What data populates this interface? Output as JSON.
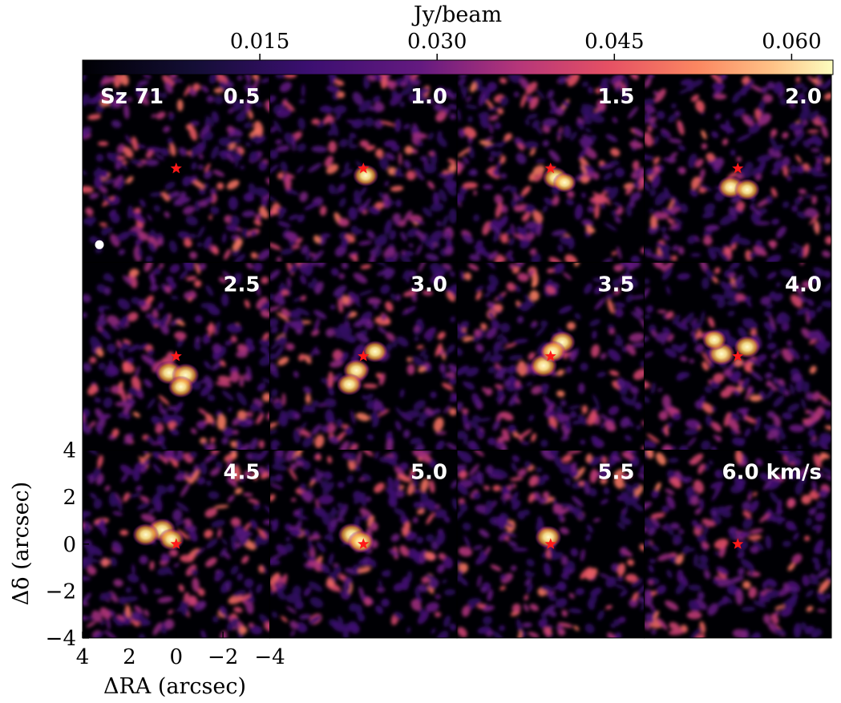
{
  "chart_data": {
    "type": "heatmap",
    "title": "",
    "source_label": "Sz 71",
    "velocity_unit": "km/s",
    "panels": [
      {
        "label": "0.5",
        "emission": []
      },
      {
        "label": "1.0",
        "emission": [
          {
            "dx": -0.1,
            "dy": -0.3,
            "peak": 0.05
          }
        ]
      },
      {
        "label": "1.5",
        "emission": [
          {
            "dx": -0.2,
            "dy": -0.4,
            "peak": 0.05
          },
          {
            "dx": -0.6,
            "dy": -0.6,
            "peak": 0.04
          }
        ]
      },
      {
        "label": "2.0",
        "emission": [
          {
            "dx": 0.3,
            "dy": -0.8,
            "peak": 0.055
          },
          {
            "dx": -0.4,
            "dy": -0.9,
            "peak": 0.05
          }
        ]
      },
      {
        "label": "2.5",
        "emission": [
          {
            "dx": 0.3,
            "dy": -0.7,
            "peak": 0.06
          },
          {
            "dx": -0.4,
            "dy": -0.8,
            "peak": 0.06
          },
          {
            "dx": -0.2,
            "dy": -1.3,
            "peak": 0.05
          }
        ]
      },
      {
        "label": "3.0",
        "emission": [
          {
            "dx": 0.3,
            "dy": -0.6,
            "peak": 0.055
          },
          {
            "dx": -0.5,
            "dy": 0.2,
            "peak": 0.05
          },
          {
            "dx": 0.6,
            "dy": -1.2,
            "peak": 0.05
          }
        ]
      },
      {
        "label": "3.5",
        "emission": [
          {
            "dx": 0.3,
            "dy": -0.4,
            "peak": 0.06
          },
          {
            "dx": -0.5,
            "dy": 0.6,
            "peak": 0.055
          },
          {
            "dx": -0.1,
            "dy": 0.2,
            "peak": 0.05
          }
        ]
      },
      {
        "label": "4.0",
        "emission": [
          {
            "dx": 0.7,
            "dy": 0.1,
            "peak": 0.06
          },
          {
            "dx": -0.4,
            "dy": 0.4,
            "peak": 0.055
          },
          {
            "dx": 1.0,
            "dy": 0.7,
            "peak": 0.045
          }
        ]
      },
      {
        "label": "4.5",
        "emission": [
          {
            "dx": 0.6,
            "dy": 0.6,
            "peak": 0.06
          },
          {
            "dx": 1.3,
            "dy": 0.4,
            "peak": 0.055
          },
          {
            "dx": 0.2,
            "dy": 0.2,
            "peak": 0.05
          }
        ]
      },
      {
        "label": "5.0",
        "emission": [
          {
            "dx": 0.5,
            "dy": 0.4,
            "peak": 0.06
          },
          {
            "dx": 0.1,
            "dy": 0.1,
            "peak": 0.055
          }
        ]
      },
      {
        "label": "5.5",
        "emission": [
          {
            "dx": 0.1,
            "dy": 0.3,
            "peak": 0.055
          }
        ]
      },
      {
        "label": "6.0 km/s",
        "emission": []
      }
    ],
    "colorbar": {
      "label": "Jy/beam",
      "ticks": [
        "0.015",
        "0.030",
        "0.045",
        "0.060"
      ],
      "tick_values": [
        0.015,
        0.03,
        0.045,
        0.06
      ],
      "range": [
        0.0,
        0.0635
      ],
      "colormap": "inferno-magma"
    },
    "xaxis": {
      "label": "ΔRA (arcsec)",
      "ticks": [
        "4",
        "2",
        "0",
        "−2",
        "−4"
      ],
      "tick_values": [
        4,
        2,
        0,
        -2,
        -4
      ],
      "range": [
        4,
        -4
      ]
    },
    "yaxis": {
      "label": "Δδ (arcsec)",
      "ticks": [
        "4",
        "2",
        "0",
        "−2",
        "−4"
      ],
      "tick_values": [
        4,
        2,
        0,
        -2,
        -4
      ],
      "range": [
        -4,
        4
      ]
    },
    "star_position": [
      0,
      0
    ],
    "colors": {
      "star": "#ff1a1a",
      "background": "#000004",
      "beam": "#ffffff"
    }
  }
}
